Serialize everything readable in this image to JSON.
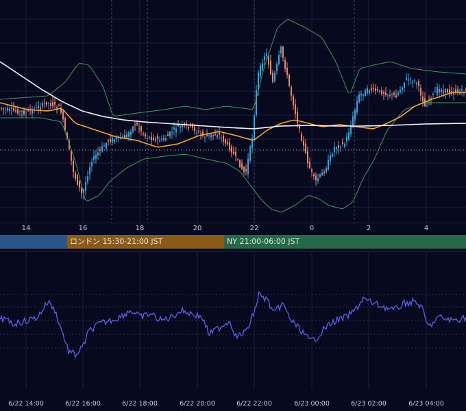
{
  "chart_data": [
    {
      "type": "candlestick",
      "panel": "price",
      "x_tick_labels": [
        "14",
        "16",
        "18",
        "20",
        "22",
        "0",
        "2",
        "4"
      ],
      "series": [
        {
          "name": "",
          "kind": "candles",
          "color_up": "#2aa7e0",
          "color_down": "#f0846a"
        },
        {
          "name": "",
          "kind": "line",
          "color": "#f5a33a"
        },
        {
          "name": "",
          "kind": "line",
          "color": "#f2f2f2"
        },
        {
          "name": "",
          "kind": "bollinger-bands",
          "color": "#3f9a5c"
        }
      ]
    },
    {
      "type": "line",
      "panel": "oscillator",
      "x_tick_labels": [
        "6/22 14:00",
        "6/22 16:00",
        "6/22 18:00",
        "6/22 20:00",
        "6/22 22:00",
        "6/23 00:00",
        "6/23 02:00",
        "6/23 04:00"
      ],
      "series": [
        {
          "name": "",
          "color": "#5b63e8"
        }
      ]
    }
  ],
  "sessions": [
    {
      "label": "",
      "color": "#2a5585"
    },
    {
      "label": "ロンドン 15:30-21:00 JST",
      "color": "#8a5a16"
    },
    {
      "label": "NY 21:00-06:00 JST",
      "color": "#246a48"
    }
  ],
  "colors": {
    "background": "#070a1e",
    "grid": "#1a1f3a"
  }
}
